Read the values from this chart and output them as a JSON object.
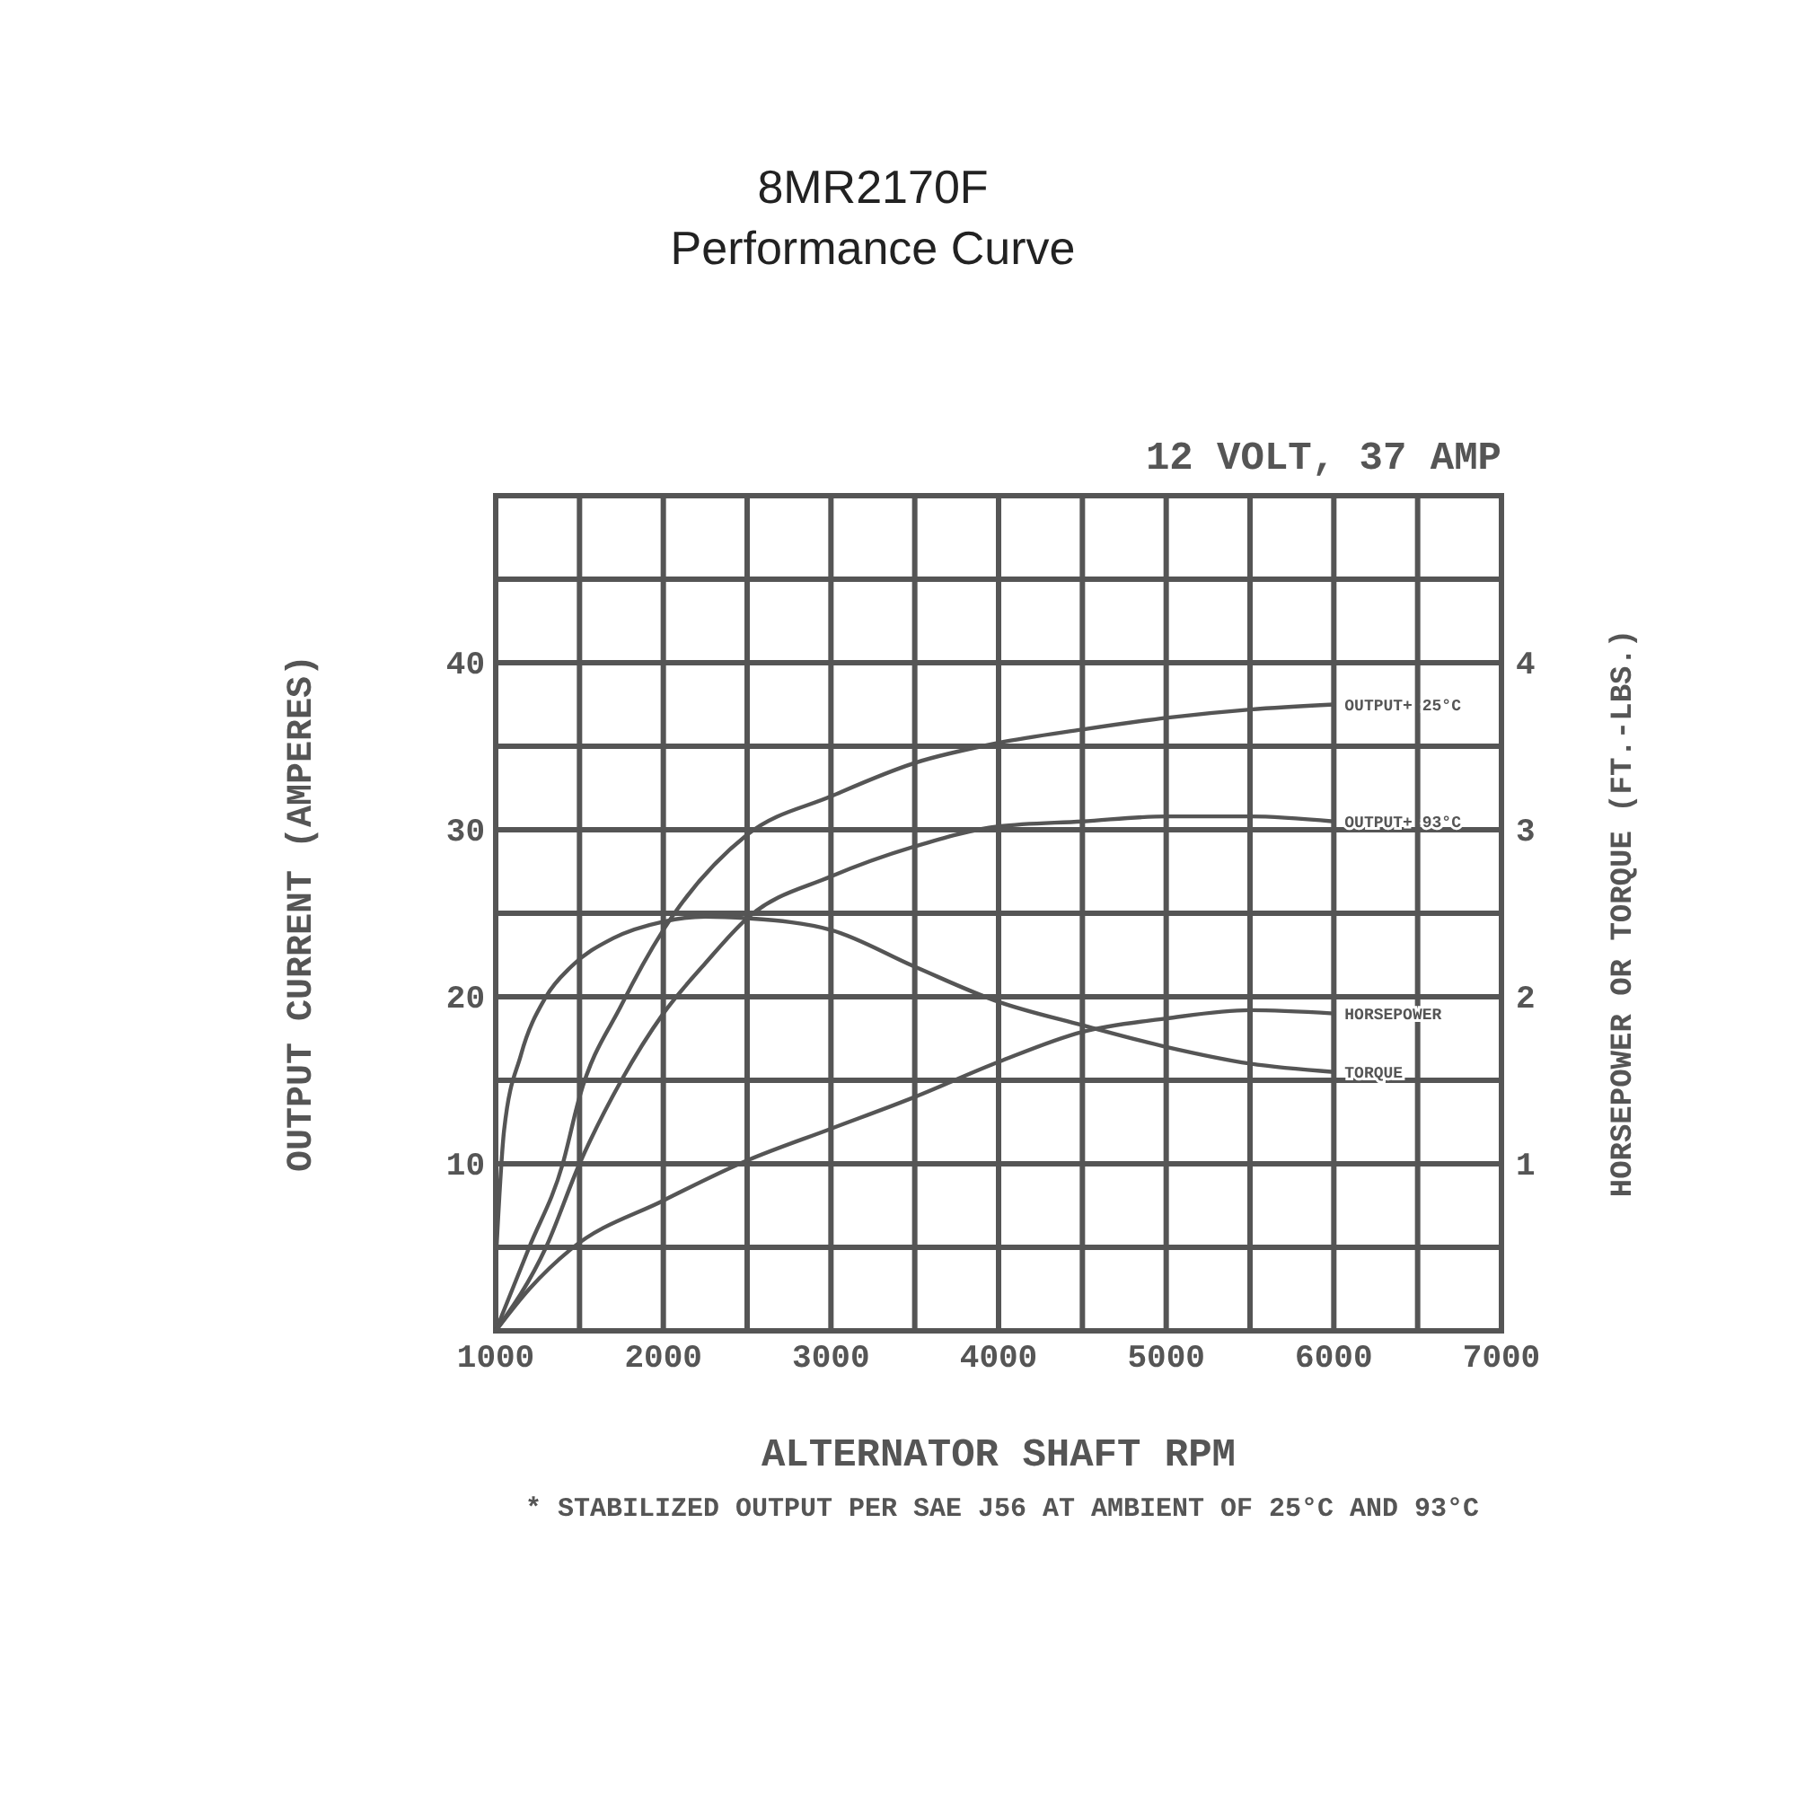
{
  "chart_data": {
    "type": "line",
    "title": "8MR2170F\nPerformance Curve",
    "subtitle": "12 VOLT, 37 AMP",
    "xlabel": "ALTERNATOR SHAFT RPM",
    "ylabel": "OUTPUT CURRENT (AMPERES)",
    "y2label": "HORSEPOWER OR TORQUE (FT.-LBS.)",
    "annotations": [
      "* STABILIZED OUTPUT PER SAE J56 AT AMBIENT OF 25°C AND 93°C"
    ],
    "xlim": [
      1000,
      7000
    ],
    "xticks": [
      1000,
      {
        "value": 1500,
        "label": null
      },
      2000,
      {
        "value": 2500,
        "label": null
      },
      3000,
      {
        "value": 3500,
        "label": null
      },
      4000,
      {
        "value": 4500,
        "label": null
      },
      5000,
      {
        "value": 5500,
        "label": null
      },
      6000,
      {
        "value": 6500,
        "label": null
      },
      7000
    ],
    "ylim": [
      0,
      50
    ],
    "yticks": [
      {
        "value": 0,
        "label": null
      },
      {
        "value": 5,
        "label": null
      },
      10,
      {
        "value": 15,
        "label": null
      },
      20,
      {
        "value": 25,
        "label": null
      },
      30,
      {
        "value": 35,
        "label": null
      },
      40,
      {
        "value": 45,
        "label": null
      },
      {
        "value": 50,
        "label": null
      }
    ],
    "y2lim": [
      0,
      5
    ],
    "y2ticks": [
      1,
      2,
      3,
      4
    ],
    "grid": true,
    "marker": "none",
    "line_style": "solid",
    "series": [
      {
        "name": "OUTPUT+ 25°C",
        "color": "#555555",
        "x": [
          1000,
          1200,
          1400,
          1500,
          1750,
          2000,
          2500,
          3000,
          3500,
          4000,
          4500,
          5000,
          5500,
          6000
        ],
        "values": [
          0,
          5,
          10,
          14,
          19.5,
          24,
          29.7,
          32,
          34,
          35.2,
          36,
          36.7,
          37.2,
          37.5
        ]
      },
      {
        "name": "OUTPUT+ 93°C",
        "color": "#555555",
        "x": [
          1000,
          1300,
          1500,
          1750,
          2000,
          2250,
          2500,
          3000,
          3500,
          4000,
          4500,
          5000,
          5500,
          6000
        ],
        "values": [
          0,
          5,
          10,
          15,
          19,
          22,
          24.7,
          27.2,
          29,
          30.2,
          30.5,
          30.8,
          30.8,
          30.5
        ]
      },
      {
        "name": "HORSEPOWER",
        "color": "#555555",
        "axis": "y2",
        "x": [
          1000,
          1200,
          1450,
          2000,
          2500,
          3000,
          3500,
          4000,
          4500,
          5000,
          5500,
          6000
        ],
        "values": [
          0,
          0.25,
          0.49,
          0.78,
          1.02,
          1.21,
          1.4,
          1.61,
          1.79,
          1.87,
          1.92,
          1.9
        ]
      },
      {
        "name": "TORQUE",
        "color": "#555555",
        "axis": "y2",
        "x": [
          1000,
          1050,
          1150,
          1300,
          1450,
          1700,
          2000,
          2250,
          2500,
          3000,
          3500,
          4000,
          4500,
          5000,
          5500,
          6000
        ],
        "values": [
          0.4,
          1.2,
          1.65,
          2,
          2.18,
          2.35,
          2.45,
          2.48,
          2.47,
          2.4,
          2.18,
          1.97,
          1.83,
          1.7,
          1.6,
          1.55
        ]
      }
    ]
  }
}
